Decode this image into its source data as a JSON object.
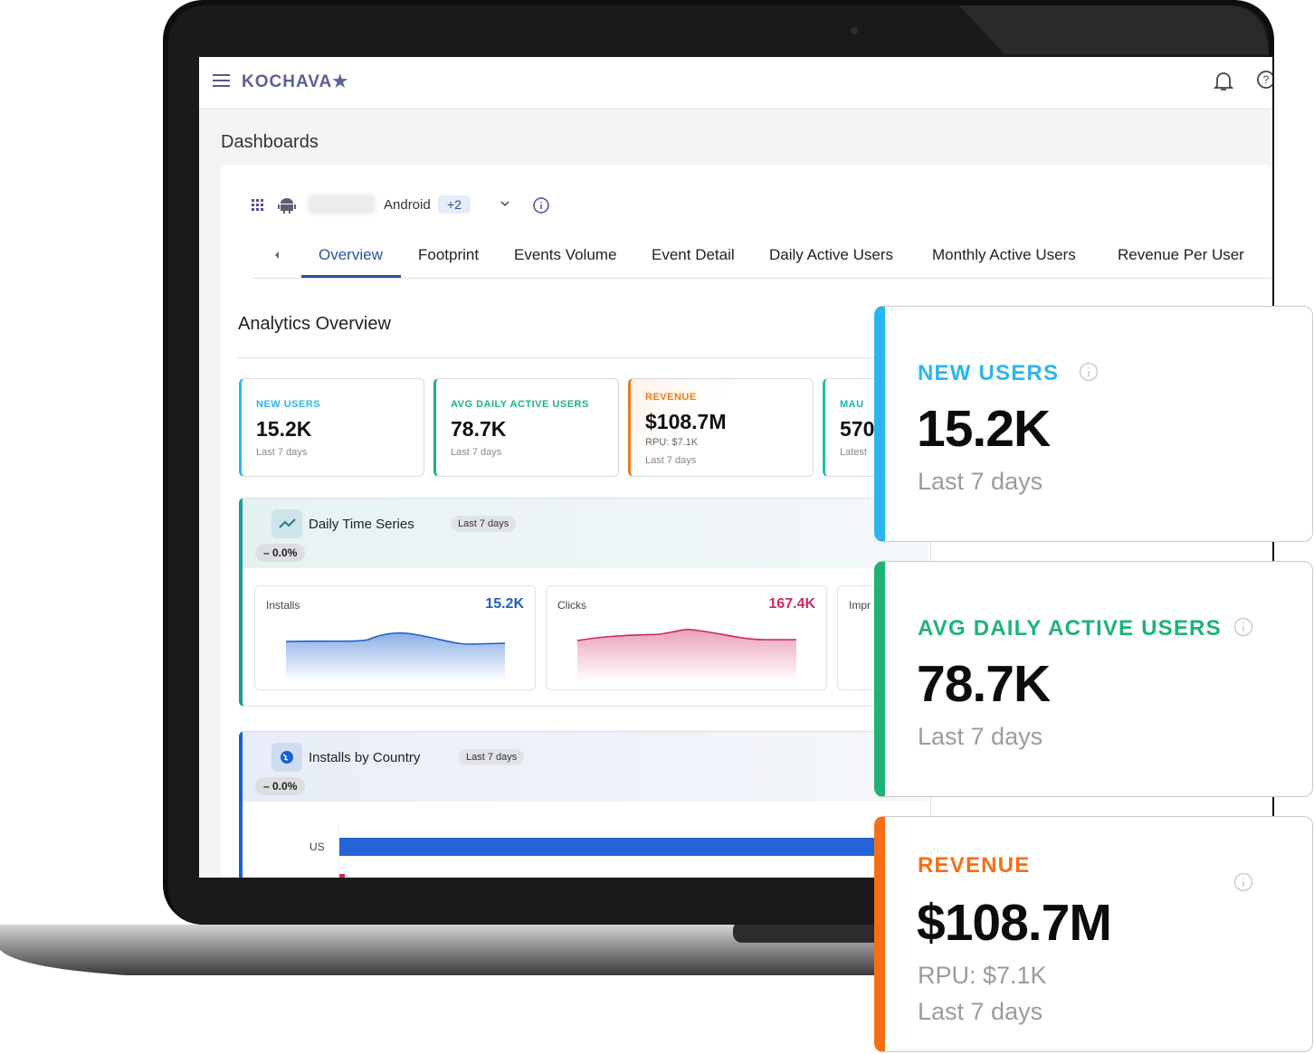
{
  "header": {
    "brand": "KOCHAVA★"
  },
  "page": {
    "title": "Dashboards"
  },
  "filter": {
    "platform": "Android",
    "extra": "+2"
  },
  "tabs": [
    "Overview",
    "Footprint",
    "Events Volume",
    "Event Detail",
    "Daily Active Users",
    "Monthly Active Users",
    "Revenue Per User"
  ],
  "section": {
    "title": "Analytics Overview"
  },
  "kpis": [
    {
      "label": "NEW USERS",
      "value": "15.2K",
      "period": "Last 7 days"
    },
    {
      "label": "AVG DAILY ACTIVE USERS",
      "value": "78.7K",
      "period": "Last 7 days"
    },
    {
      "label": "REVENUE",
      "value": "$108.7M",
      "rpu": "RPU: $7.1K",
      "period": "Last 7 days"
    },
    {
      "label": "MAU",
      "value": "570",
      "period": "Latest"
    }
  ],
  "time_series": {
    "title": "Daily Time Series",
    "range": "Last 7 days",
    "change": "– 0.0%",
    "metrics": [
      {
        "name": "Installs",
        "value": "15.2K"
      },
      {
        "name": "Clicks",
        "value": "167.4K"
      },
      {
        "name": "Impr"
      }
    ]
  },
  "countries": {
    "title": "Installs by Country",
    "range": "Last 7 days",
    "change": "– 0.0%",
    "rows": [
      "US"
    ]
  }
}
